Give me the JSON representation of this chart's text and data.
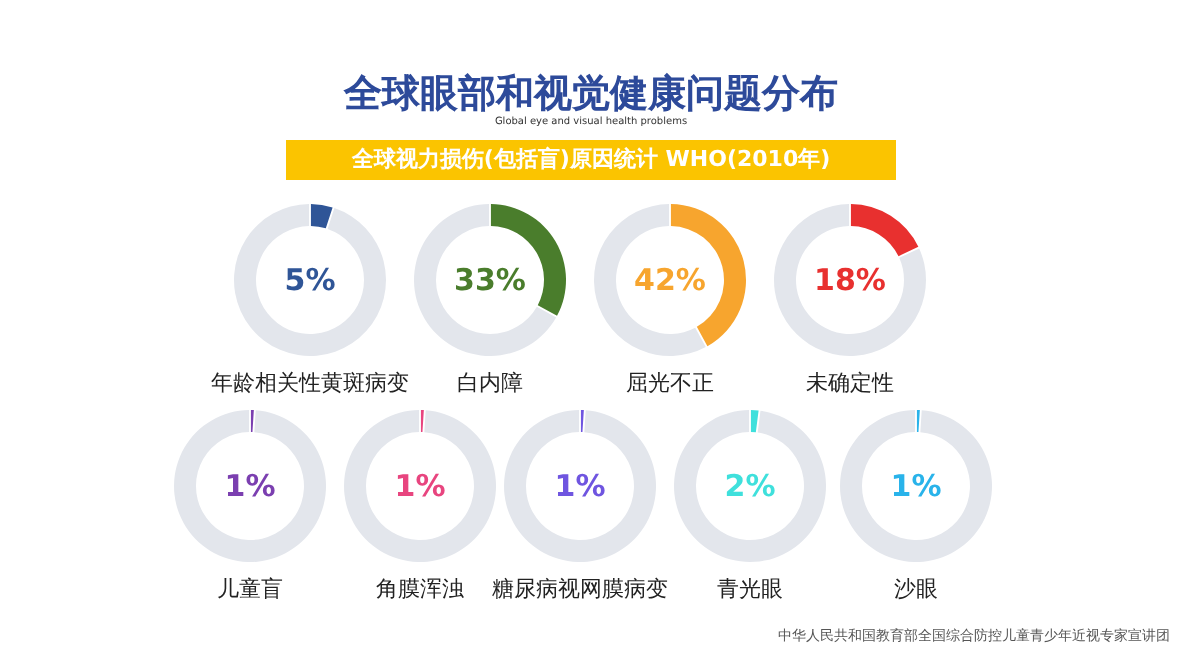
{
  "chart_data": [
    {
      "type": "other",
      "title": "全球眼部和视觉健康问题分布",
      "subtitle": "Global eye and visual health problems",
      "annotations": [
        "全球视力损伤(包括盲)原因统计 WHO(2010年)",
        "中华人民共和国教育部全国综合防控儿童青少年近视专家宣讲团"
      ]
    },
    {
      "type": "donut",
      "title": "年龄相关性黄斑病变",
      "categories": [
        null,
        null
      ],
      "values": [
        5,
        95
      ],
      "colors": [
        "#2f5597",
        "#e3e6ec"
      ],
      "annotations": [
        "5%"
      ]
    },
    {
      "type": "donut",
      "title": "白内障",
      "categories": [
        null,
        null
      ],
      "values": [
        33,
        67
      ],
      "colors": [
        "#4a7d2c",
        "#e3e6ec"
      ],
      "annotations": [
        "33%"
      ]
    },
    {
      "type": "donut",
      "title": "屈光不正",
      "categories": [
        null,
        null
      ],
      "values": [
        42,
        58
      ],
      "colors": [
        "#f7a52e",
        "#e3e6ec"
      ],
      "annotations": [
        "42%"
      ]
    },
    {
      "type": "donut",
      "title": "未确定性",
      "categories": [
        null,
        null
      ],
      "values": [
        18,
        82
      ],
      "colors": [
        "#e8302f",
        "#e3e6ec"
      ],
      "annotations": [
        "18%"
      ]
    },
    {
      "type": "donut",
      "title": "儿童盲",
      "categories": [
        null,
        null
      ],
      "values": [
        1,
        99
      ],
      "colors": [
        "#7b3fb0",
        "#e3e6ec"
      ],
      "annotations": [
        "1%"
      ]
    },
    {
      "type": "donut",
      "title": "角膜浑浊",
      "categories": [
        null,
        null
      ],
      "values": [
        1,
        99
      ],
      "colors": [
        "#e8457f",
        "#e3e6ec"
      ],
      "annotations": [
        "1%"
      ]
    },
    {
      "type": "donut",
      "title": "糖尿病视网膜病变",
      "categories": [
        null,
        null
      ],
      "values": [
        1,
        99
      ],
      "colors": [
        "#6f55e0",
        "#e3e6ec"
      ],
      "annotations": [
        "1%"
      ]
    },
    {
      "type": "donut",
      "title": "青光眼",
      "categories": [
        null,
        null
      ],
      "values": [
        2,
        98
      ],
      "colors": [
        "#3fe0dc",
        "#e3e6ec"
      ],
      "annotations": [
        "2%"
      ]
    },
    {
      "type": "donut",
      "title": "沙眼",
      "categories": [
        null,
        null
      ],
      "values": [
        1,
        99
      ],
      "colors": [
        "#29b3ea",
        "#e3e6ec"
      ],
      "annotations": [
        "1%"
      ]
    }
  ]
}
